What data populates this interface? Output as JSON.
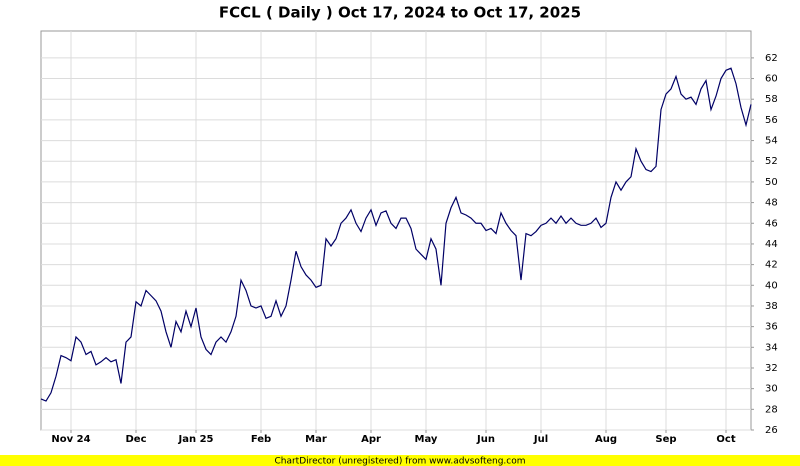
{
  "chart_data": {
    "type": "line",
    "title": "FCCL ( Daily ) Oct 17, 2024 to Oct 17, 2025",
    "footer": "ChartDirector (unregistered) from www.advsofteng.com",
    "categories": [
      null,
      null,
      null,
      null,
      null,
      null,
      "Nov 24",
      null,
      null,
      null,
      null,
      null,
      null,
      null,
      null,
      null,
      null,
      null,
      null,
      "Dec",
      null,
      null,
      null,
      null,
      null,
      null,
      null,
      null,
      null,
      null,
      null,
      "Jan 25",
      null,
      null,
      null,
      null,
      null,
      null,
      null,
      null,
      null,
      null,
      null,
      null,
      "Feb",
      null,
      null,
      null,
      null,
      null,
      null,
      null,
      null,
      null,
      null,
      "Mar",
      null,
      null,
      null,
      null,
      null,
      null,
      null,
      null,
      null,
      null,
      "Apr",
      null,
      null,
      null,
      null,
      null,
      null,
      null,
      null,
      null,
      null,
      "May",
      null,
      null,
      null,
      null,
      null,
      null,
      null,
      null,
      null,
      null,
      null,
      "Jun",
      null,
      null,
      null,
      null,
      null,
      null,
      null,
      null,
      null,
      null,
      "Jul",
      null,
      null,
      null,
      null,
      null,
      null,
      null,
      null,
      null,
      null,
      null,
      null,
      "Aug",
      null,
      null,
      null,
      null,
      null,
      null,
      null,
      null,
      null,
      null,
      null,
      "Sep",
      null,
      null,
      null,
      null,
      null,
      null,
      null,
      null,
      null,
      null,
      null,
      "Oct",
      null,
      null,
      null,
      null,
      null
    ],
    "series": [
      {
        "color": "#000066",
        "values": [
          29.0,
          28.8,
          29.6,
          31.2,
          33.2,
          33.0,
          32.7,
          35.0,
          34.5,
          33.3,
          33.6,
          32.3,
          32.6,
          33.0,
          32.6,
          32.8,
          30.5,
          34.5,
          35.0,
          38.4,
          38.0,
          39.5,
          39.0,
          38.5,
          37.5,
          35.5,
          34.0,
          36.5,
          35.5,
          37.5,
          36.0,
          37.8,
          35.0,
          33.8,
          33.3,
          34.5,
          35.0,
          34.5,
          35.5,
          37.0,
          40.5,
          39.5,
          38.0,
          37.8,
          38.0,
          36.8,
          37.0,
          38.5,
          37.0,
          38.0,
          40.5,
          43.3,
          41.8,
          41.0,
          40.5,
          39.8,
          40.0,
          44.5,
          43.8,
          44.5,
          46.0,
          46.5,
          47.3,
          46.0,
          45.2,
          46.5,
          47.3,
          45.8,
          47.0,
          47.2,
          46.0,
          45.5,
          46.5,
          46.5,
          45.5,
          43.5,
          43.0,
          42.5,
          44.5,
          43.5,
          40.0,
          46.0,
          47.5,
          48.5,
          47.0,
          46.8,
          46.5,
          46.0,
          46.0,
          45.3,
          45.5,
          45.0,
          47.0,
          46.0,
          45.3,
          44.8,
          40.5,
          45.0,
          44.8,
          45.2,
          45.8,
          46.0,
          46.5,
          46.0,
          46.7,
          46.0,
          46.5,
          46.0,
          45.8,
          45.8,
          46.0,
          46.5,
          45.6,
          46.0,
          48.5,
          50.0,
          49.2,
          50.0,
          50.5,
          53.2,
          52.0,
          51.2,
          51.0,
          51.5,
          57.0,
          58.5,
          59.0,
          60.2,
          58.5,
          58.0,
          58.2,
          57.5,
          59.0,
          59.8,
          57.0,
          58.3,
          60.0,
          60.8,
          61.0,
          59.5,
          57.2,
          55.5,
          57.5
        ]
      }
    ],
    "ylim": [
      26,
      64.6
    ],
    "yticks": [
      26,
      28,
      30,
      32,
      34,
      36,
      38,
      40,
      42,
      44,
      46,
      48,
      50,
      52,
      54,
      56,
      58,
      60,
      62
    ],
    "grid": true
  }
}
